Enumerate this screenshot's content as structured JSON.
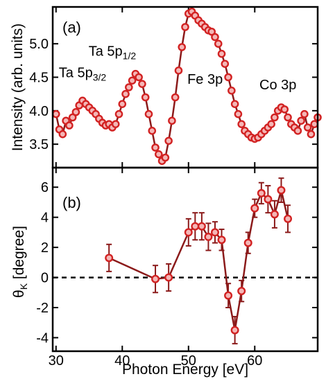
{
  "chart_data": [
    {
      "panel_label": "(a)",
      "type": "line",
      "ylabel": "Intensity (arb. units)",
      "xlim": [
        29.5,
        69.5
      ],
      "ylim": [
        3.15,
        5.55
      ],
      "yticks": [
        3.5,
        4.0,
        4.5,
        5.0
      ],
      "ytick_labels": [
        "3.5",
        "4.0",
        "4.5",
        "5.0"
      ],
      "marker": "open-circle",
      "line_color": "#8b1a1a",
      "marker_edge": "#d22222",
      "marker_fill": "#f4b6b6",
      "annotations": [
        {
          "main": "Ta 5p",
          "sub": "3/2",
          "near": [
            34.0,
            4.5
          ]
        },
        {
          "main": "Ta 5p",
          "sub": "1/2",
          "near": [
            38.5,
            4.82
          ]
        },
        {
          "main": "Fe 3p",
          "sub": "",
          "near": [
            52.5,
            4.4
          ]
        },
        {
          "main": "Co 3p",
          "sub": "",
          "near": [
            63.5,
            4.32
          ]
        }
      ],
      "x": [
        30.0,
        30.5,
        31.0,
        31.5,
        32.0,
        32.5,
        33.0,
        33.5,
        34.0,
        34.5,
        35.0,
        35.5,
        36.0,
        36.5,
        37.0,
        37.5,
        38.0,
        38.5,
        39.0,
        39.5,
        40.0,
        40.5,
        41.0,
        41.5,
        42.0,
        42.5,
        43.0,
        43.5,
        44.0,
        44.5,
        45.0,
        45.5,
        46.0,
        46.5,
        47.0,
        47.5,
        48.0,
        48.5,
        49.0,
        49.5,
        50.0,
        50.5,
        51.0,
        51.5,
        52.0,
        52.5,
        53.0,
        53.5,
        54.0,
        54.5,
        55.0,
        55.5,
        56.0,
        56.5,
        57.0,
        57.5,
        58.0,
        58.5,
        59.0,
        59.5,
        60.0,
        60.5,
        61.0,
        61.5,
        62.0,
        62.5,
        63.0,
        63.5,
        64.0,
        64.5,
        65.0,
        65.5,
        66.0,
        66.5,
        67.0,
        67.5,
        68.0,
        68.5,
        69.0,
        69.5
      ],
      "y": [
        3.95,
        3.72,
        3.65,
        3.85,
        3.78,
        3.9,
        3.98,
        4.08,
        4.15,
        4.1,
        4.05,
        4.0,
        3.95,
        3.88,
        3.82,
        3.78,
        3.8,
        3.75,
        3.8,
        3.95,
        4.1,
        4.25,
        4.35,
        4.45,
        4.55,
        4.5,
        4.4,
        4.2,
        3.95,
        3.7,
        3.45,
        3.35,
        3.25,
        3.3,
        3.55,
        3.85,
        4.2,
        4.6,
        4.95,
        5.25,
        5.45,
        5.48,
        5.42,
        5.35,
        5.3,
        5.25,
        5.2,
        5.18,
        5.1,
        5.0,
        4.85,
        4.7,
        4.5,
        4.3,
        4.1,
        3.95,
        3.8,
        3.7,
        3.65,
        3.6,
        3.58,
        3.6,
        3.65,
        3.7,
        3.75,
        3.8,
        3.9,
        4.0,
        4.05,
        4.02,
        3.9,
        3.8,
        3.75,
        3.7,
        3.85,
        3.95,
        3.75,
        3.65,
        3.8,
        3.9
      ]
    },
    {
      "panel_label": "(b)",
      "type": "line",
      "ylabel_main": "θ",
      "ylabel_sub": "K",
      "ylabel_rest": " [degree]",
      "xlabel": "Photon Energy [eV]",
      "xlim": [
        29.5,
        69.5
      ],
      "ylim": [
        -4.9,
        7.3
      ],
      "yticks": [
        -4,
        -2,
        0,
        2,
        4,
        6
      ],
      "ytick_labels": [
        "-4",
        "-2",
        "0",
        "2",
        "4",
        "6"
      ],
      "xticks": [
        30,
        40,
        50,
        60
      ],
      "xtick_labels": [
        "30",
        "40",
        "50",
        "60"
      ],
      "zero_line": true,
      "marker": "open-circle",
      "line_color": "#8b1a1a",
      "marker_edge": "#d22222",
      "marker_fill": "#f4b6b6",
      "x": [
        38.0,
        45.0,
        47.0,
        50.0,
        51.0,
        52.0,
        53.0,
        54.0,
        55.0,
        56.0,
        57.0,
        58.0,
        59.0,
        60.0,
        61.0,
        62.0,
        63.0,
        64.0,
        65.0
      ],
      "y": [
        1.3,
        -0.1,
        0.0,
        3.0,
        3.4,
        3.4,
        2.7,
        3.0,
        2.5,
        -1.2,
        -3.5,
        -0.9,
        2.3,
        4.6,
        5.6,
        5.2,
        4.2,
        5.8,
        3.9
      ],
      "err": [
        0.9,
        0.9,
        0.9,
        0.9,
        0.9,
        0.9,
        0.9,
        0.7,
        0.7,
        0.8,
        0.9,
        0.7,
        0.7,
        0.6,
        0.7,
        0.9,
        0.9,
        0.8,
        0.9
      ]
    }
  ]
}
